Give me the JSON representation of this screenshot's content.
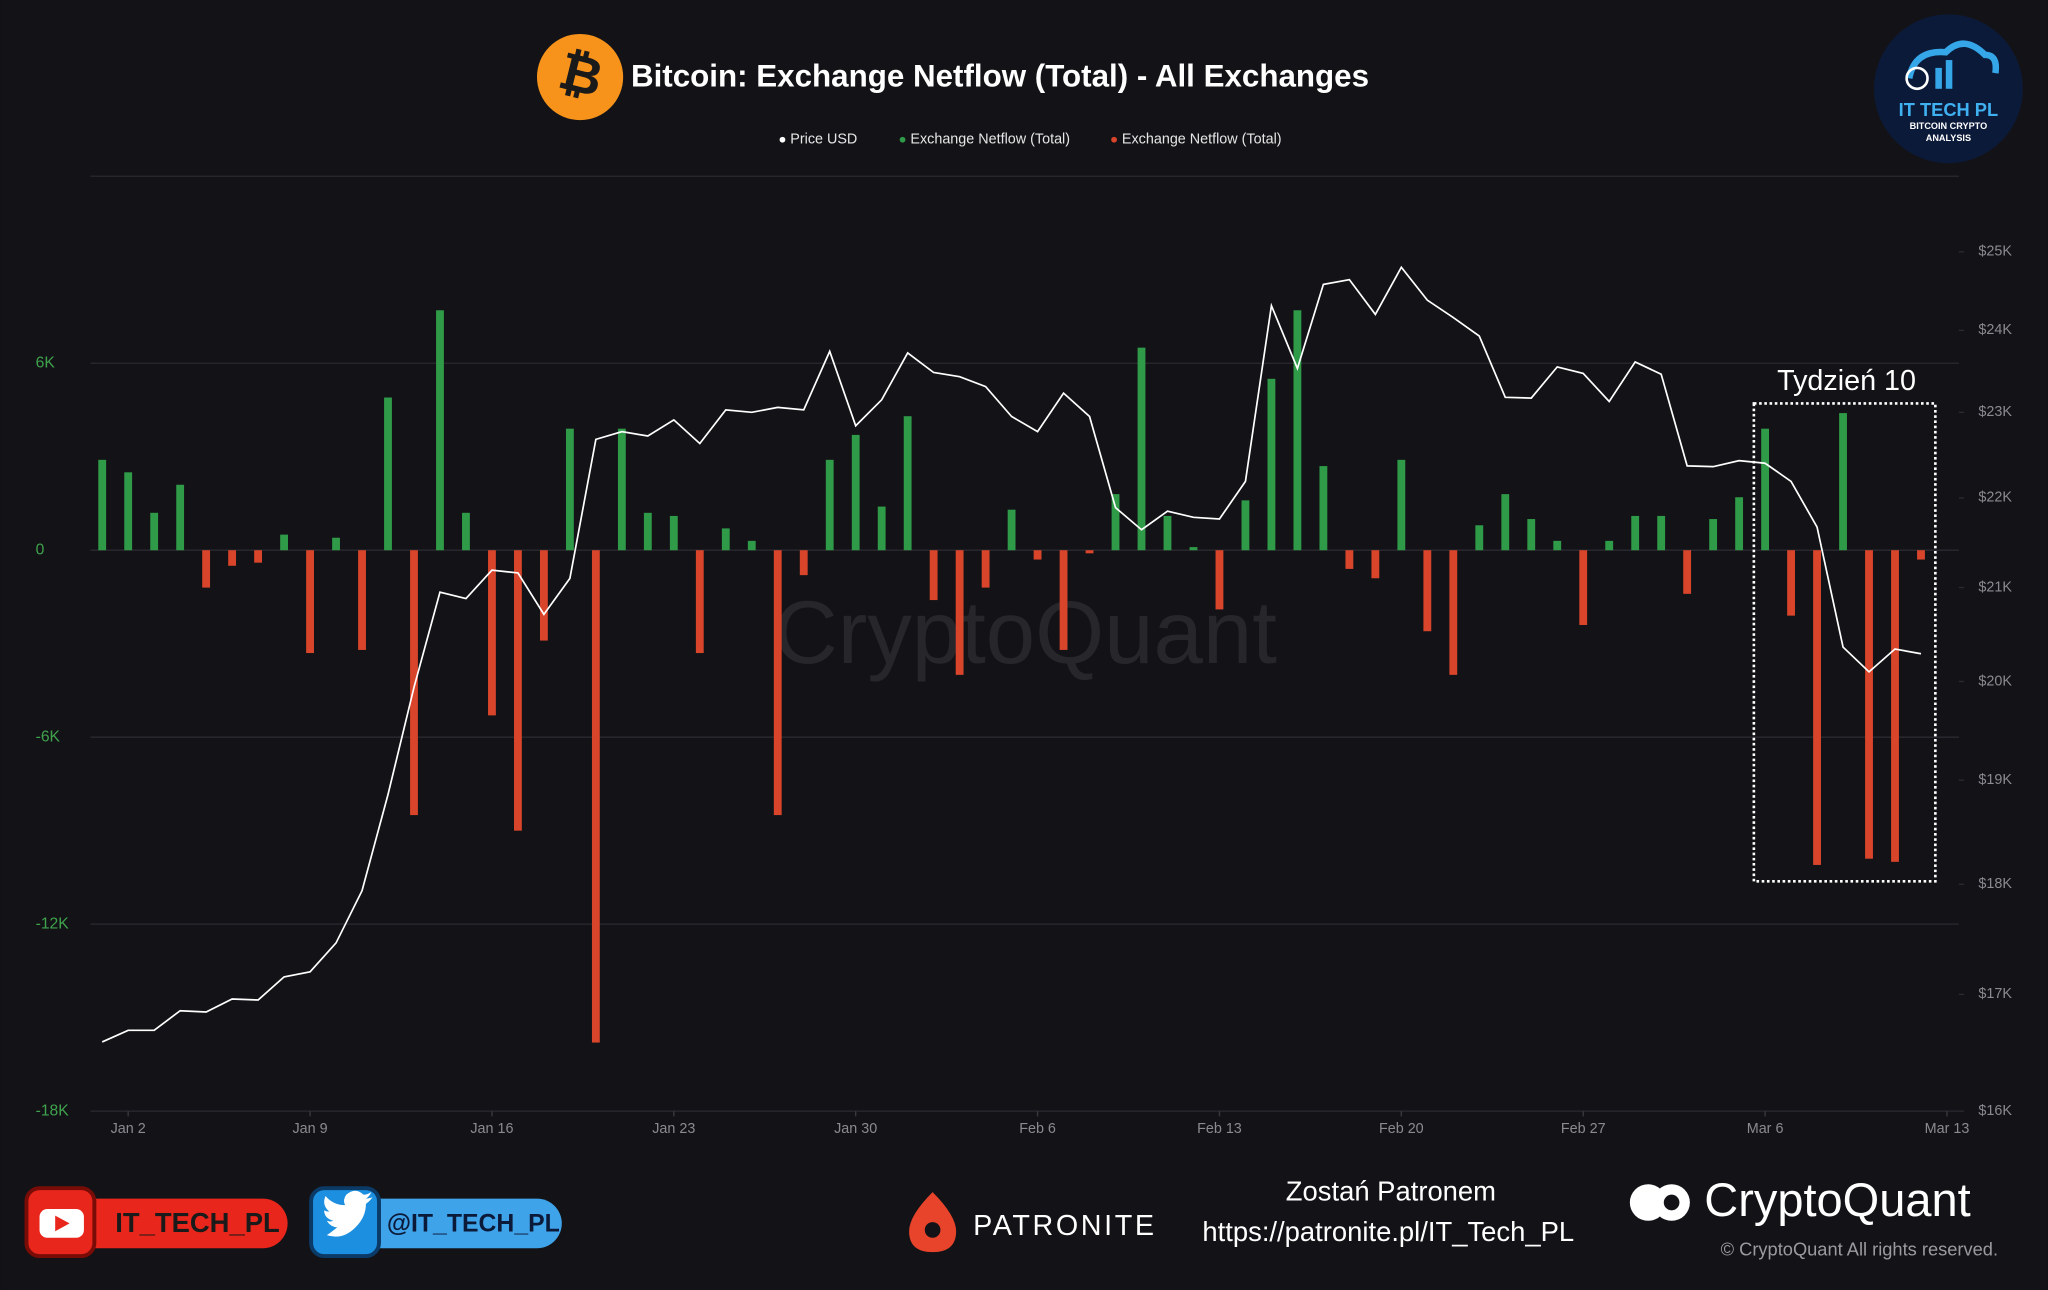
{
  "chart_data": {
    "type": "bar",
    "title": "Bitcoin: Exchange Netflow (Total) - All Exchanges",
    "title_icon": "₿",
    "legend_position": "top",
    "categories": [
      null,
      "Jan 2",
      null,
      null,
      null,
      null,
      null,
      null,
      "Jan 9",
      null,
      null,
      null,
      null,
      null,
      null,
      "Jan 16",
      null,
      null,
      null,
      null,
      null,
      null,
      "Jan 23",
      null,
      null,
      null,
      null,
      null,
      null,
      "Jan 30",
      null,
      null,
      null,
      null,
      null,
      null,
      "Feb 6",
      null,
      null,
      null,
      null,
      null,
      null,
      "Feb 13",
      null,
      null,
      null,
      null,
      null,
      null,
      "Feb 20",
      null,
      null,
      null,
      null,
      null,
      null,
      "Feb 27",
      null,
      null,
      null,
      null,
      null,
      null,
      "Mar 6",
      null,
      null,
      null,
      null,
      null,
      null,
      "Mar 13"
    ],
    "series": [
      {
        "name": "Price USD",
        "type": "line",
        "axis": "y2",
        "color": "#ffffff",
        "values": [
          16585,
          16686,
          16686,
          16856,
          16845,
          16960,
          16950,
          17155,
          17200,
          17460,
          17940,
          18860,
          19940,
          20950,
          20880,
          21190,
          21160,
          20710,
          21100,
          22680,
          22770,
          22720,
          22910,
          22630,
          23030,
          23000,
          23060,
          23030,
          23740,
          22840,
          23150,
          23720,
          23480,
          23430,
          23310,
          22950,
          22770,
          23230,
          22950,
          21890,
          21640,
          21850,
          21780,
          21760,
          22190,
          24310,
          23530,
          24580,
          24640,
          24200,
          24800,
          24380,
          24160,
          23930,
          23180,
          23170,
          23550,
          23470,
          23130,
          23610,
          23460,
          22370,
          22360,
          22430,
          22400,
          22190,
          21670,
          20360,
          20100,
          20340,
          20290,
          null
        ]
      },
      {
        "name": "Exchange Netflow (Total)",
        "type": "bar",
        "color": "#2f9a48",
        "values": [
          2900,
          2500,
          1200,
          2100,
          null,
          null,
          null,
          500,
          null,
          400,
          null,
          4900,
          null,
          7700,
          1200,
          null,
          null,
          null,
          3900,
          null,
          3900,
          1200,
          1100,
          null,
          700,
          300,
          null,
          null,
          2900,
          3700,
          1400,
          4300,
          null,
          null,
          null,
          1300,
          null,
          null,
          null,
          1800,
          6500,
          1100,
          100,
          null,
          1600,
          5500,
          7700,
          2700,
          null,
          null,
          2900,
          null,
          null,
          800,
          1800,
          1000,
          300,
          null,
          300,
          1100,
          1100,
          null,
          1000,
          1700,
          3900,
          null,
          null,
          4400,
          null,
          null,
          null,
          null
        ]
      },
      {
        "name": "Exchange Netflow (Total)",
        "type": "bar",
        "color": "#d8452b",
        "values": [
          null,
          null,
          null,
          null,
          -1200,
          -500,
          -400,
          null,
          -3300,
          null,
          -3200,
          null,
          -8500,
          null,
          null,
          -5300,
          -9000,
          -2900,
          null,
          -15800,
          null,
          null,
          null,
          -3300,
          null,
          null,
          -8500,
          -800,
          null,
          null,
          null,
          null,
          -1600,
          -4000,
          -1200,
          null,
          -300,
          -3200,
          -100,
          null,
          null,
          null,
          null,
          -1900,
          null,
          null,
          null,
          null,
          -600,
          -900,
          null,
          -2600,
          -4000,
          null,
          null,
          null,
          null,
          -2400,
          null,
          null,
          null,
          -1400,
          null,
          null,
          null,
          -2100,
          -10100,
          null,
          -9900,
          -10000,
          -300,
          null
        ]
      }
    ],
    "ylim": [
      -18000,
      12000
    ],
    "yticks": [
      {
        "value": -18000,
        "label": "-18K"
      },
      {
        "value": -12000,
        "label": "-12K"
      },
      {
        "value": -6000,
        "label": "-6K"
      },
      0,
      {
        "value": 6000,
        "label": "6K"
      }
    ],
    "y2lim": [
      16000,
      26000
    ],
    "y2log": true,
    "y2ticks": [
      {
        "value": 16000,
        "label": "$16K"
      },
      {
        "value": 17000,
        "label": "$17K"
      },
      {
        "value": 18000,
        "label": "$18K"
      },
      {
        "value": 19000,
        "label": "$19K"
      },
      {
        "value": 20000,
        "label": "$20K"
      },
      {
        "value": 21000,
        "label": "$21K"
      },
      {
        "value": 22000,
        "label": "$22K"
      },
      {
        "value": 23000,
        "label": "$23K"
      },
      {
        "value": 24000,
        "label": "$24K"
      },
      {
        "value": 25000,
        "label": "$25K"
      }
    ],
    "grid": true,
    "annotation": "Tydzień 10",
    "watermark": "CryptoQuant"
  },
  "branding": {
    "logo_title": "IT TECH PL",
    "logo_subtitle": "BITCOIN CRYPTO",
    "logo_subtitle2": "ANALYSIS",
    "youtube": "IT_TECH_PL",
    "twitter": "@IT_TECH_PL",
    "patronite": "PATRONITE",
    "patron_call": "Zostań Patronem",
    "patron_url": "https://patronite.pl/IT_Tech_PL",
    "brand": "CryptoQuant",
    "copyright": "© CryptoQuant All rights reserved."
  }
}
